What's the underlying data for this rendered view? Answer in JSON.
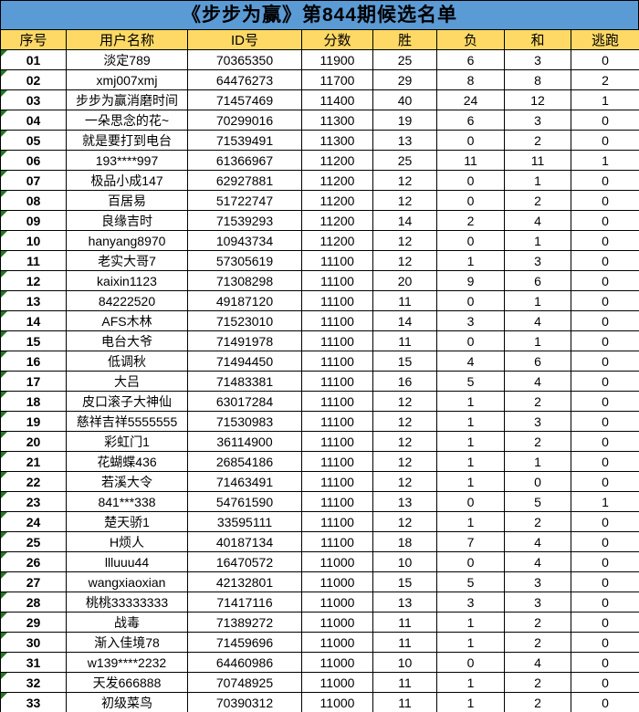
{
  "title": "《步步为赢》第844期候选名单",
  "colors": {
    "title_bg": "#5B9BD5",
    "header_bg": "#FFD966",
    "index_bg": "#808080",
    "flag_triangle_green": "#217821",
    "border": "#000000",
    "title_text": "#000000",
    "index_text": "#FFFFFF"
  },
  "table": {
    "headers": [
      "序号",
      "用户名称",
      "ID号",
      "分数",
      "胜",
      "负",
      "和",
      "逃跑"
    ],
    "rows": [
      [
        "01",
        "淡定789",
        "70365350",
        "11900",
        "25",
        "6",
        "3",
        "0"
      ],
      [
        "02",
        "xmj007xmj",
        "64476273",
        "11700",
        "29",
        "8",
        "8",
        "2"
      ],
      [
        "03",
        "步步为赢消磨时间",
        "71457469",
        "11400",
        "40",
        "24",
        "12",
        "1"
      ],
      [
        "04",
        "一朵思念的花~",
        "70299016",
        "11300",
        "19",
        "6",
        "3",
        "0"
      ],
      [
        "05",
        "就是要打到电台",
        "71539491",
        "11300",
        "13",
        "0",
        "2",
        "0"
      ],
      [
        "06",
        "193****997",
        "61366967",
        "11200",
        "25",
        "11",
        "11",
        "1"
      ],
      [
        "07",
        "极品小成147",
        "62927881",
        "11200",
        "12",
        "0",
        "1",
        "0"
      ],
      [
        "08",
        "百居易",
        "51722747",
        "11200",
        "12",
        "0",
        "2",
        "0"
      ],
      [
        "09",
        "良缘吉时",
        "71539293",
        "11200",
        "14",
        "2",
        "4",
        "0"
      ],
      [
        "10",
        "hanyang8970",
        "10943734",
        "11200",
        "12",
        "0",
        "1",
        "0"
      ],
      [
        "11",
        "老实大哥7",
        "57305619",
        "11100",
        "12",
        "1",
        "3",
        "0"
      ],
      [
        "12",
        "kaixin1123",
        "71308298",
        "11100",
        "20",
        "9",
        "6",
        "0"
      ],
      [
        "13",
        "84222520",
        "49187120",
        "11100",
        "11",
        "0",
        "1",
        "0"
      ],
      [
        "14",
        "AFS木林",
        "71523010",
        "11100",
        "14",
        "3",
        "4",
        "0"
      ],
      [
        "15",
        "电台大爷",
        "71491978",
        "11100",
        "11",
        "0",
        "1",
        "0"
      ],
      [
        "16",
        "低调秋",
        "71494450",
        "11100",
        "15",
        "4",
        "6",
        "0"
      ],
      [
        "17",
        "大吕",
        "71483381",
        "11100",
        "16",
        "5",
        "4",
        "0"
      ],
      [
        "18",
        "皮口滚子大神仙",
        "63017284",
        "11100",
        "12",
        "1",
        "2",
        "0"
      ],
      [
        "19",
        "慈祥吉祥5555555",
        "71530983",
        "11100",
        "12",
        "1",
        "3",
        "0"
      ],
      [
        "20",
        "彩虹门1",
        "36114900",
        "11100",
        "12",
        "1",
        "2",
        "0"
      ],
      [
        "21",
        "花蝴蝶436",
        "26854186",
        "11100",
        "12",
        "1",
        "1",
        "0"
      ],
      [
        "22",
        "若溪大令",
        "71463491",
        "11100",
        "12",
        "1",
        "0",
        "0"
      ],
      [
        "23",
        "841***338",
        "54761590",
        "11100",
        "13",
        "0",
        "5",
        "1"
      ],
      [
        "24",
        "楚天骄1",
        "33595111",
        "11100",
        "12",
        "1",
        "2",
        "0"
      ],
      [
        "25",
        "H烦人",
        "40187134",
        "11100",
        "18",
        "7",
        "4",
        "0"
      ],
      [
        "26",
        "llluuu44",
        "16470572",
        "11000",
        "10",
        "0",
        "4",
        "0"
      ],
      [
        "27",
        "wangxiaoxian",
        "42132801",
        "11000",
        "15",
        "5",
        "3",
        "0"
      ],
      [
        "28",
        "桃桃33333333",
        "71417116",
        "11000",
        "13",
        "3",
        "3",
        "0"
      ],
      [
        "29",
        "战毒",
        "71389272",
        "11000",
        "11",
        "1",
        "2",
        "0"
      ],
      [
        "30",
        "渐入佳境78",
        "71459696",
        "11000",
        "11",
        "1",
        "2",
        "0"
      ],
      [
        "31",
        "w139****2232",
        "64460986",
        "11000",
        "10",
        "0",
        "4",
        "0"
      ],
      [
        "32",
        "天发666888",
        "70748925",
        "11000",
        "11",
        "1",
        "2",
        "0"
      ],
      [
        "33",
        "初级菜鸟",
        "70390312",
        "11000",
        "11",
        "1",
        "2",
        "0"
      ]
    ]
  }
}
